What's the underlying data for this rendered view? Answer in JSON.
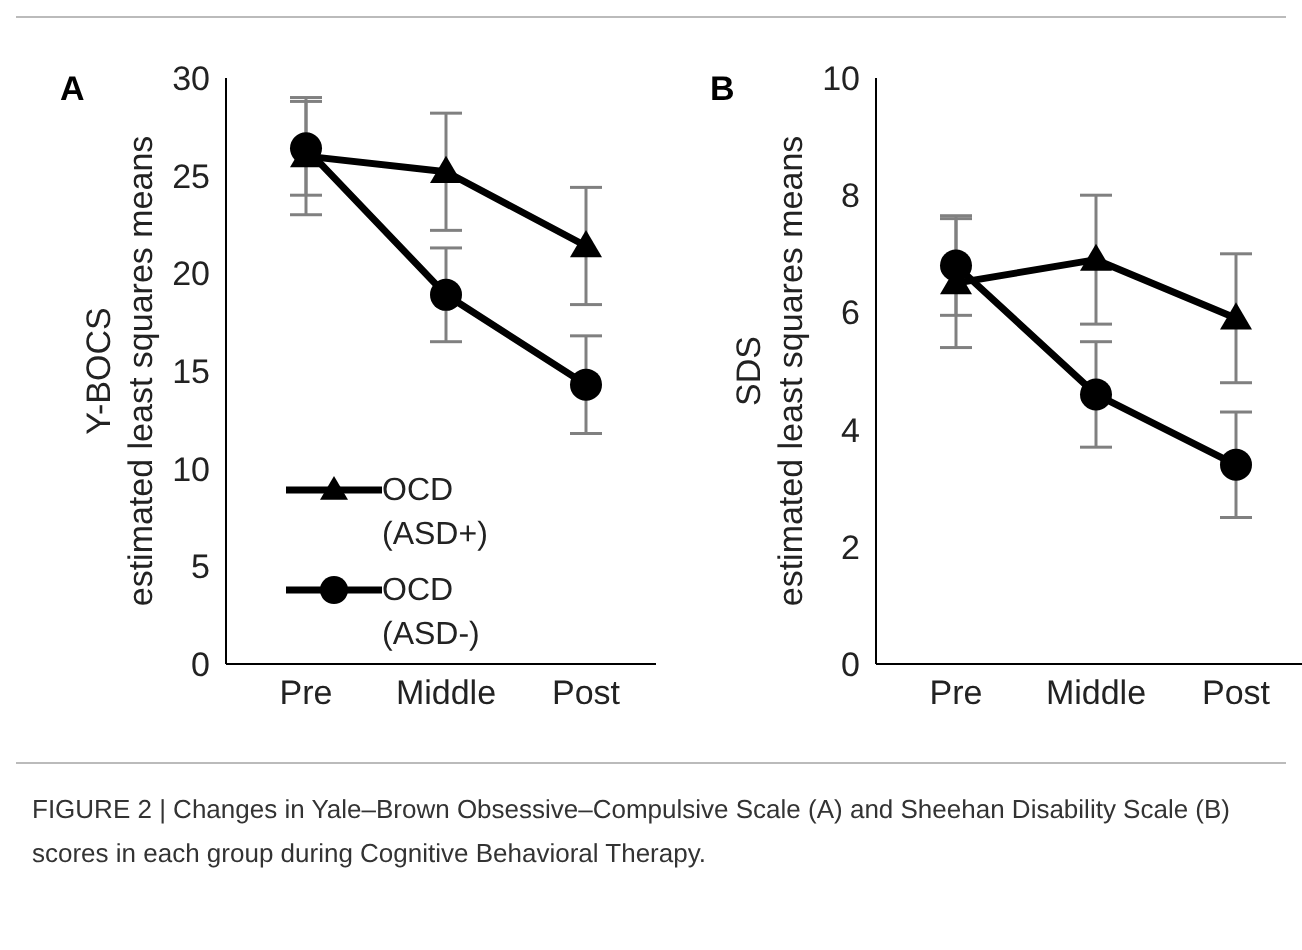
{
  "chart_data": [
    {
      "type": "line",
      "title": "A",
      "ylabel": "Y-BOCS\nestimated least squares means",
      "categories": [
        "Pre",
        "Middle",
        "Post"
      ],
      "series": [
        {
          "name": "OCD (ASD+)",
          "color": "#000000",
          "marker": "triangle",
          "values": [
            26.0,
            25.2,
            21.4
          ],
          "errors": [
            3.0,
            3.0,
            3.0
          ]
        },
        {
          "name": "OCD (ASD-)",
          "color": "#000000",
          "marker": "circle",
          "values": [
            26.4,
            18.9,
            14.3
          ],
          "errors": [
            2.4,
            2.4,
            2.5
          ]
        }
      ],
      "ylim": [
        0,
        30
      ],
      "yticks": [
        0,
        5,
        10,
        15,
        20,
        25,
        30
      ],
      "grid": false,
      "legend": "bottom left",
      "annotations": [
        "FIGURE 2 | Changes in Yale–Brown Obsessive–Compulsive Scale (A) and Sheehan Disability Scale (B) scores in each group during Cognitive Behavioral Therapy."
      ]
    },
    {
      "type": "line",
      "title": "B",
      "ylabel": "SDS\nestimated least squares means",
      "categories": [
        "Pre",
        "Middle",
        "Post"
      ],
      "series": [
        {
          "color": "#000000",
          "marker": "triangle",
          "values": [
            6.5,
            6.9,
            5.9
          ],
          "errors": [
            1.1,
            1.1,
            1.1
          ]
        },
        {
          "color": "#000000",
          "marker": "circle",
          "values": [
            6.8,
            4.6,
            3.4
          ],
          "errors": [
            0.85,
            0.9,
            0.9
          ]
        }
      ],
      "ylim": [
        0,
        10
      ],
      "yticks": [
        0,
        2,
        4,
        6,
        8,
        10
      ],
      "grid": false,
      "legend": false
    }
  ]
}
